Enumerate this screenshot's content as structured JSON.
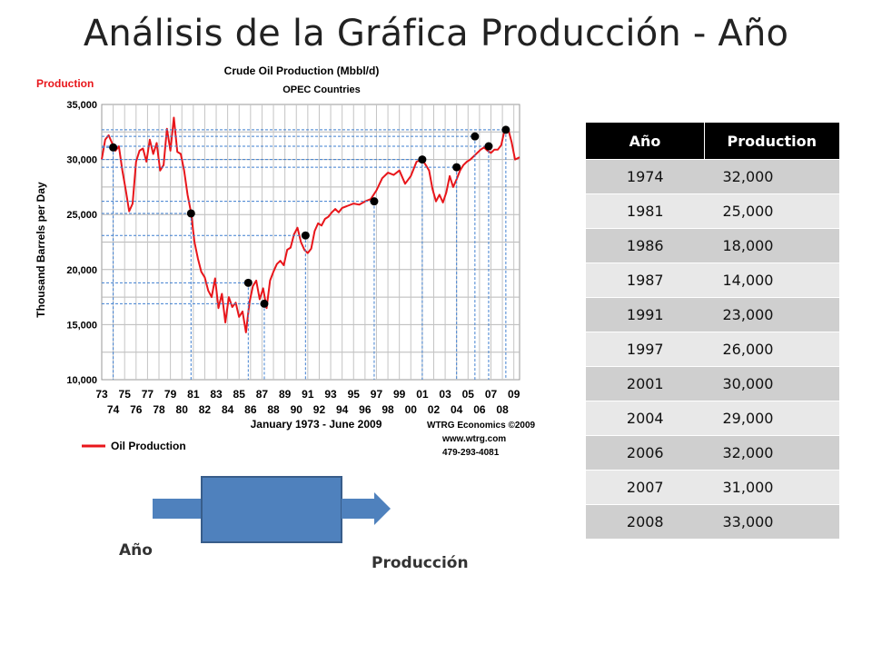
{
  "slide": {
    "title": "Análisis de la Gráfica Producción - Año"
  },
  "chart_data": {
    "type": "line",
    "title": "Crude Oil Production (Mbbl/d)",
    "subtitle": "OPEC Countries",
    "corner_label": "Production",
    "ylabel": "Thousand Barrels per Day",
    "xlabel": "January 1973 - June 2009",
    "ylim": [
      10000,
      35000
    ],
    "xlim": [
      1973,
      2009.5
    ],
    "yticks": [
      "10,000",
      "15,000",
      "20,000",
      "25,000",
      "30,000",
      "35,000"
    ],
    "xticks_top": [
      "73",
      "75",
      "77",
      "79",
      "81",
      "83",
      "85",
      "87",
      "89",
      "91",
      "93",
      "95",
      "97",
      "99",
      "01",
      "03",
      "05",
      "07",
      "09"
    ],
    "xticks_bottom": [
      "74",
      "76",
      "78",
      "80",
      "82",
      "84",
      "86",
      "88",
      "90",
      "92",
      "94",
      "96",
      "98",
      "00",
      "02",
      "04",
      "06",
      "08"
    ],
    "legend": "Oil Production",
    "source": [
      "WTRG Economics ©2009",
      "www.wtrg.com",
      "479-293-4081"
    ],
    "series": [
      {
        "name": "Oil Production",
        "color": "#e8161b",
        "x": [
          1973.0,
          1973.3,
          1973.6,
          1973.9,
          1974.2,
          1974.5,
          1974.8,
          1975.1,
          1975.4,
          1975.7,
          1976.0,
          1976.3,
          1976.6,
          1976.9,
          1977.2,
          1977.5,
          1977.8,
          1978.1,
          1978.4,
          1978.7,
          1979.0,
          1979.3,
          1979.6,
          1979.9,
          1980.2,
          1980.5,
          1980.8,
          1981.1,
          1981.4,
          1981.7,
          1982.0,
          1982.3,
          1982.6,
          1982.9,
          1983.2,
          1983.5,
          1983.8,
          1984.1,
          1984.4,
          1984.7,
          1985.0,
          1985.3,
          1985.6,
          1985.9,
          1986.2,
          1986.5,
          1986.8,
          1987.1,
          1987.4,
          1987.7,
          1988.0,
          1988.3,
          1988.6,
          1988.9,
          1989.2,
          1989.5,
          1989.8,
          1990.1,
          1990.4,
          1990.7,
          1991.0,
          1991.3,
          1991.6,
          1991.9,
          1992.2,
          1992.5,
          1992.8,
          1993.1,
          1993.4,
          1993.7,
          1994.0,
          1994.5,
          1995.0,
          1995.5,
          1996.0,
          1996.5,
          1997.0,
          1997.5,
          1998.0,
          1998.5,
          1999.0,
          1999.5,
          2000.0,
          2000.5,
          2001.0,
          2001.3,
          2001.6,
          2001.9,
          2002.2,
          2002.5,
          2002.8,
          2003.1,
          2003.4,
          2003.7,
          2004.0,
          2004.3,
          2004.6,
          2004.9,
          2005.2,
          2005.5,
          2005.8,
          2006.1,
          2006.4,
          2006.7,
          2007.0,
          2007.3,
          2007.6,
          2007.9,
          2008.2,
          2008.5,
          2008.8,
          2009.1,
          2009.5
        ],
        "y": [
          30000,
          31800,
          32200,
          31500,
          30800,
          31200,
          29000,
          27200,
          25300,
          26000,
          29800,
          30800,
          31000,
          29800,
          31800,
          30500,
          31500,
          29000,
          29500,
          32800,
          30800,
          33800,
          30700,
          30500,
          29000,
          26800,
          25200,
          22500,
          21000,
          19800,
          19300,
          18100,
          17500,
          19200,
          16500,
          17800,
          15200,
          17500,
          16600,
          17000,
          15700,
          16200,
          14300,
          17000,
          18500,
          19000,
          17300,
          18300,
          16500,
          19000,
          19800,
          20500,
          20800,
          20400,
          21800,
          22000,
          23200,
          23800,
          22500,
          21800,
          21500,
          21900,
          23500,
          24200,
          24000,
          24600,
          24800,
          25200,
          25500,
          25200,
          25600,
          25800,
          26000,
          25900,
          26200,
          26400,
          27200,
          28300,
          28800,
          28600,
          29000,
          27800,
          28500,
          29800,
          30000,
          29500,
          29000,
          27300,
          26200,
          26800,
          26100,
          27000,
          28500,
          27500,
          28200,
          29000,
          29500,
          29800,
          30000,
          30300,
          30600,
          30900,
          31100,
          30800,
          30600,
          30900,
          30900,
          31300,
          32700,
          32800,
          31600,
          30000,
          30200
        ],
        "marked_points": {
          "x": [
            1974.0,
            1980.8,
            1985.8,
            1987.2,
            1990.8,
            1996.8,
            2001.0,
            2004.0,
            2005.6,
            2006.8,
            2008.3
          ],
          "y": [
            31100,
            25100,
            18800,
            16900,
            23100,
            26200,
            30000,
            29300,
            32100,
            31200,
            32700
          ]
        }
      }
    ]
  },
  "table": {
    "headers": [
      "Año",
      "Production"
    ],
    "rows": [
      [
        "1974",
        "32,000"
      ],
      [
        "1981",
        "25,000"
      ],
      [
        "1986",
        "18,000"
      ],
      [
        "1987",
        "14,000"
      ],
      [
        "1991",
        "23,000"
      ],
      [
        "1997",
        "26,000"
      ],
      [
        "2001",
        "30,000"
      ],
      [
        "2004",
        "29,000"
      ],
      [
        "2006",
        "32,000"
      ],
      [
        "2007",
        "31,000"
      ],
      [
        "2008",
        "33,000"
      ]
    ]
  },
  "flow": {
    "input_label": "Año",
    "output_label": "Producción",
    "box_color": "#4f81bd"
  }
}
